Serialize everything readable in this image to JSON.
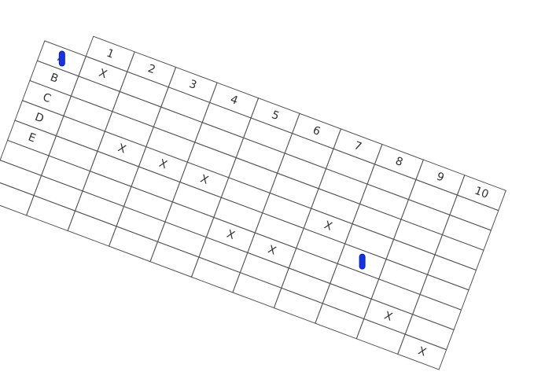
{
  "board": {
    "columns": [
      "",
      "1",
      "2",
      "3",
      "4",
      "5",
      "6",
      "7",
      "8",
      "9",
      "10"
    ],
    "rows": [
      "A",
      "B",
      "C",
      "D",
      "E"
    ],
    "marks": [
      {
        "row": 1,
        "col": 1,
        "text": "X"
      },
      {
        "row": 4,
        "col": 2,
        "text": "X"
      },
      {
        "row": 4,
        "col": 3,
        "text": "X"
      },
      {
        "row": 4,
        "col": 4,
        "text": "X"
      },
      {
        "row": 4,
        "col": 7,
        "text": "X"
      },
      {
        "row": 6,
        "col": 5,
        "text": "X"
      },
      {
        "row": 6,
        "col": 6,
        "text": "X"
      },
      {
        "row": 7,
        "col": 9,
        "text": "X"
      },
      {
        "row": 8,
        "col": 10,
        "text": "X"
      }
    ],
    "pieces": [
      {
        "row": 1,
        "col": 0,
        "name": "player-token",
        "color": "#1433e6"
      },
      {
        "row": 5,
        "col": 8,
        "name": "target-token",
        "color": "#1433e6"
      }
    ],
    "line_color": "#555555",
    "text_color": "#333333"
  }
}
